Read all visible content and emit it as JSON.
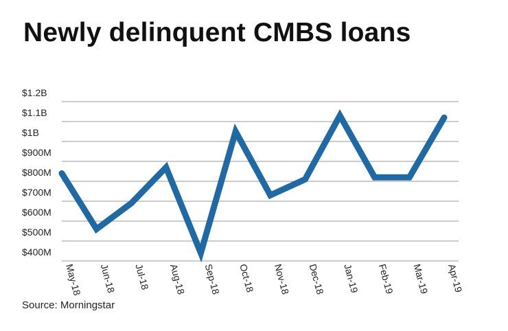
{
  "title": "Newly delinquent CMBS loans",
  "source": "Source: Morningstar",
  "colors": {
    "line": "#1f6aa5",
    "grid": "#9a9a9a",
    "text": "#222222"
  },
  "chart_data": {
    "type": "line",
    "title": "Newly delinquent CMBS loans",
    "xlabel": "",
    "ylabel": "",
    "categories": [
      "May-18",
      "Jun-18",
      "Jul-18",
      "Aug-18",
      "Sep-18",
      "Oct-18",
      "Nov-18",
      "Dec-18",
      "Jan-19",
      "Feb-19",
      "Mar-19",
      "Apr-19"
    ],
    "series": [
      {
        "values": [
          840,
          560,
          690,
          870,
          440,
          1050,
          730,
          810,
          1130,
          820,
          820,
          1120
        ]
      }
    ],
    "yticks": [
      {
        "value": 400,
        "label": "$400M"
      },
      {
        "value": 500,
        "label": "$500M"
      },
      {
        "value": 600,
        "label": "$600M"
      },
      {
        "value": 700,
        "label": "$700M"
      },
      {
        "value": 800,
        "label": "$800M"
      },
      {
        "value": 900,
        "label": "$900M"
      },
      {
        "value": 1000,
        "label": "$1B"
      },
      {
        "value": 1100,
        "label": "$1.1B"
      },
      {
        "value": 1200,
        "label": "$1.2B"
      }
    ],
    "ylim": [
      400,
      1200
    ],
    "grid": true,
    "legend": "none"
  }
}
